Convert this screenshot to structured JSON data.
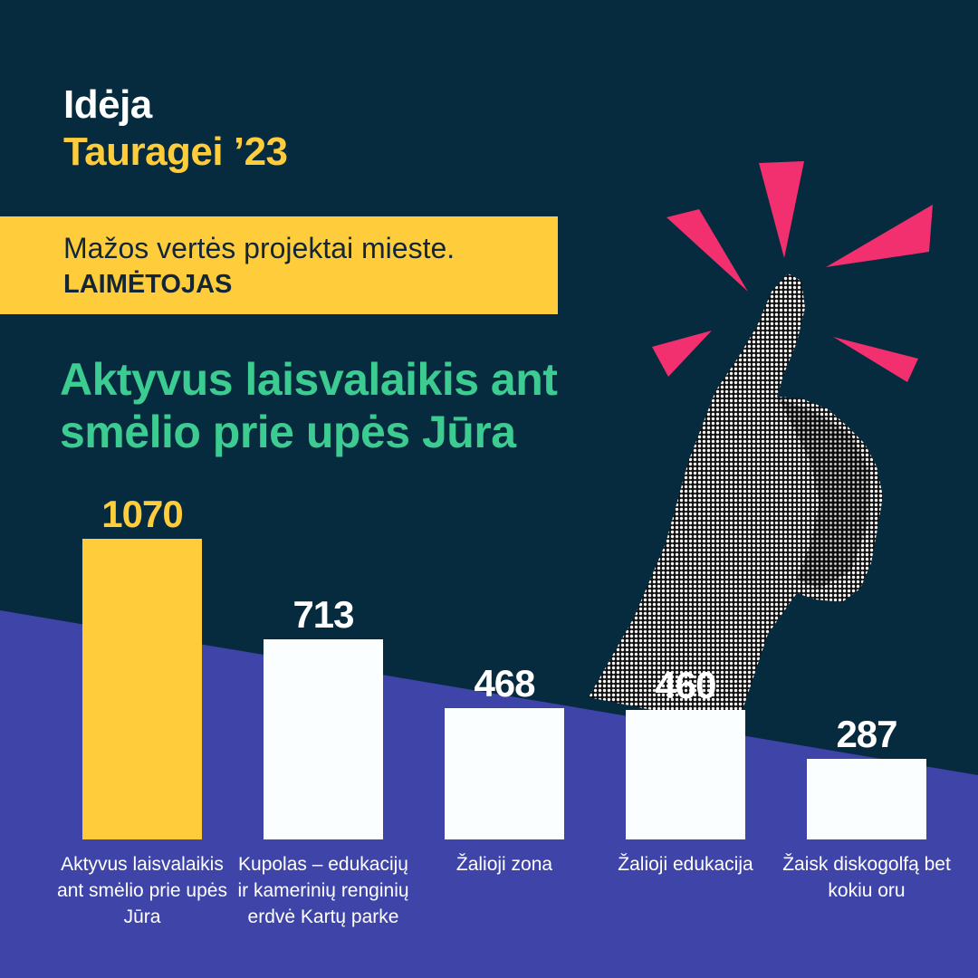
{
  "brand": {
    "line1": "Idėja",
    "line2": "Tauragei ’23"
  },
  "banner": {
    "text": "Mažos vertės projektai mieste.",
    "label": "LAIMĖTOJAS"
  },
  "headline": "Aktyvus laisvalaikis ant smėlio prie upės Jūra",
  "colors": {
    "background": "#062a3e",
    "band": "#3f44a8",
    "yellow": "#ffcd3c",
    "green": "#3ccc91",
    "pink": "#f2306f",
    "bar": "#fbfeff"
  },
  "illustration": {
    "icon": "thumbs-up-icon",
    "accent": "pink-burst-icon"
  },
  "chart_data": {
    "type": "bar",
    "categories": [
      "Aktyvus laisvalaikis ant smėlio prie upės Jūra",
      "Kupolas – edukacijų ir kamerinių renginių erdvė Kartų parke",
      "Žalioji zona",
      "Žalioji edukacija",
      "Žaisk diskogolfą bet kokiu oru"
    ],
    "values": [
      1070,
      713,
      468,
      460,
      287
    ],
    "highlight_index": 0,
    "ylim": [
      0,
      1100
    ],
    "grid": false
  }
}
